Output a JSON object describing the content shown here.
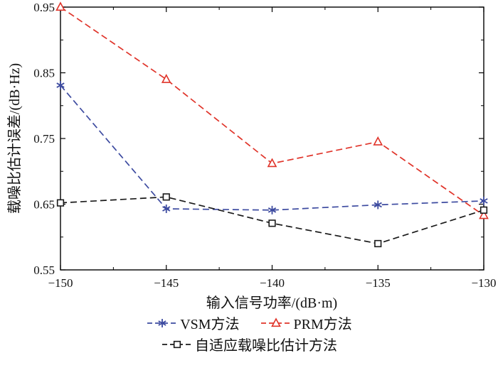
{
  "chart_data": {
    "type": "line",
    "title": "",
    "xlabel": "输入信号功率/(dB·m)",
    "ylabel": "载噪比估计误差/(dB·Hz)",
    "xlim": [
      -150,
      -130
    ],
    "ylim": [
      0.55,
      0.95
    ],
    "xticks": [
      -150,
      -145,
      -140,
      -135,
      -130
    ],
    "yticks": [
      0.55,
      0.65,
      0.75,
      0.85,
      0.95
    ],
    "grid": false,
    "legend_position": "bottom",
    "x": [
      -150,
      -145,
      -140,
      -135,
      -130
    ],
    "series": [
      {
        "name": "VSM方法",
        "marker": "asterisk",
        "line_style": "dashed",
        "color": "#3d4ba0",
        "values": [
          0.831,
          0.643,
          0.641,
          0.649,
          0.655
        ]
      },
      {
        "name": "PRM方法",
        "marker": "triangle",
        "line_style": "dashed",
        "color": "#e0342a",
        "values": [
          0.95,
          0.84,
          0.712,
          0.745,
          0.633
        ]
      },
      {
        "name": "自适应载噪比估计方法",
        "marker": "square",
        "line_style": "dashed",
        "color": "#1a1a1a",
        "values": [
          0.652,
          0.661,
          0.621,
          0.59,
          0.641
        ]
      }
    ]
  }
}
